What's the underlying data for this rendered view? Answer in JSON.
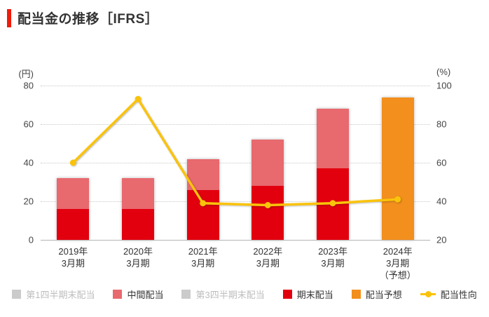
{
  "header": {
    "title": "配当金の推移［IFRS］",
    "accent_color": "#ee1c0c"
  },
  "chart_data": {
    "type": "bar+line",
    "title": "配当金の推移［IFRS］",
    "grid": "dotted-horizontal",
    "legend_position": "bottom",
    "categories": [
      {
        "lines": [
          "2019年",
          "3月期"
        ]
      },
      {
        "lines": [
          "2020年",
          "3月期"
        ]
      },
      {
        "lines": [
          "2021年",
          "3月期"
        ]
      },
      {
        "lines": [
          "2022年",
          "3月期"
        ]
      },
      {
        "lines": [
          "2023年",
          "3月期"
        ]
      },
      {
        "lines": [
          "2024年",
          "3月期",
          "（予想）"
        ]
      }
    ],
    "left_axis": {
      "unit": "(円)",
      "ticks": [
        0,
        20,
        40,
        60,
        80
      ],
      "min": 0,
      "max": 80
    },
    "right_axis": {
      "unit": "(%)",
      "ticks": [
        20,
        40,
        60,
        80,
        100
      ],
      "min": 20,
      "max": 100
    },
    "series": [
      {
        "key": "q1-dividend",
        "name": "第1四半期末配当",
        "type": "bar",
        "marker": "square",
        "color": "#cbcbcb",
        "disabled": true,
        "values": [
          null,
          null,
          null,
          null,
          null,
          null
        ]
      },
      {
        "key": "interim-dividend",
        "name": "中間配当",
        "type": "bar",
        "marker": "square",
        "color": "#e8696e",
        "stack_index": 1,
        "values": [
          16,
          16,
          16,
          24,
          31,
          null
        ]
      },
      {
        "key": "q3-dividend",
        "name": "第3四半期末配当",
        "type": "bar",
        "marker": "square",
        "color": "#cbcbcb",
        "disabled": true,
        "values": [
          null,
          null,
          null,
          null,
          null,
          null
        ]
      },
      {
        "key": "yearend-dividend",
        "name": "期末配当",
        "type": "bar",
        "marker": "square",
        "color": "#e2000f",
        "stack_index": 0,
        "values": [
          16,
          16,
          26,
          28,
          37,
          null
        ]
      },
      {
        "key": "forecast-dividend",
        "name": "配当予想",
        "type": "bar",
        "marker": "square",
        "color": "#f28f1d",
        "stack_index": 0,
        "values": [
          null,
          null,
          null,
          null,
          null,
          74
        ]
      },
      {
        "key": "payout-ratio",
        "name": "配当性向",
        "type": "line",
        "marker": "line-dot",
        "axis": "right",
        "color": "#fac30b",
        "values": [
          60,
          93,
          39,
          38,
          39,
          41
        ]
      }
    ]
  }
}
